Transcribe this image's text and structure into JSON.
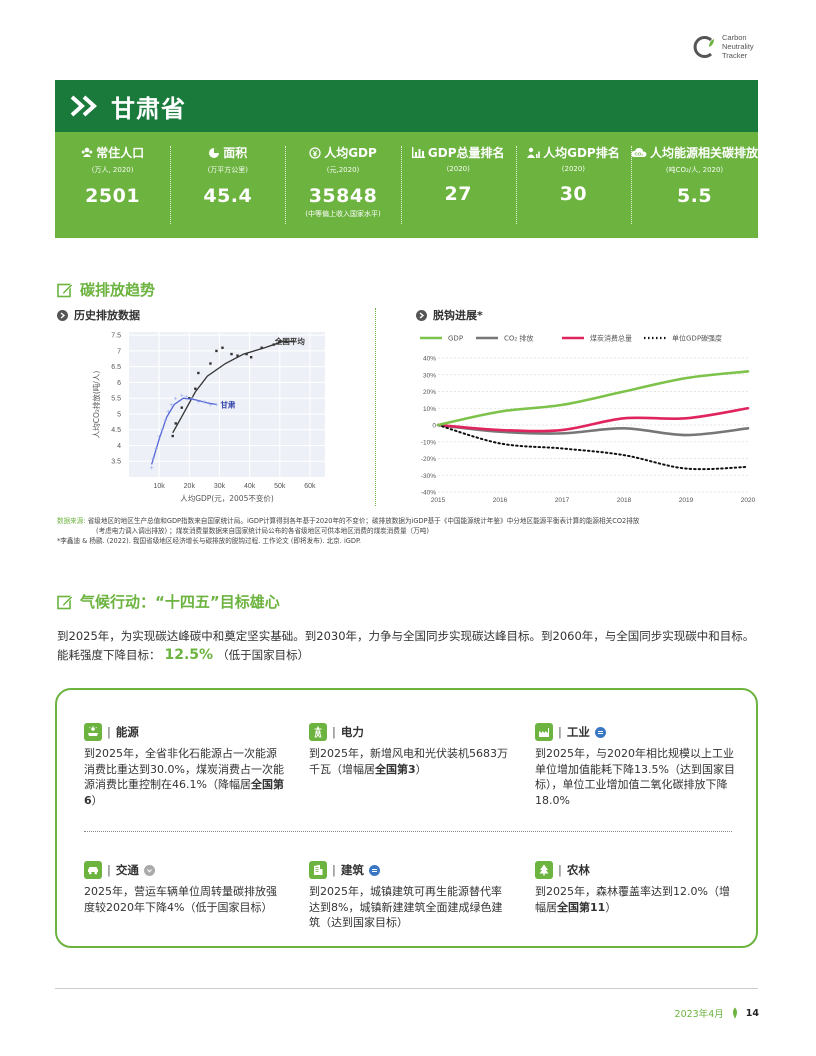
{
  "logo": {
    "lines": [
      "Carbon",
      "Neutrality",
      "Tracker"
    ]
  },
  "header": {
    "title": "甘肃省"
  },
  "stats": [
    {
      "label": "常住人口",
      "unit": "(万人, 2020)",
      "value": "2501",
      "note": "",
      "icon": "people-icon"
    },
    {
      "label": "面积",
      "unit": "(万平方公里)",
      "value": "45.4",
      "note": "",
      "icon": "pie-icon"
    },
    {
      "label": "人均GDP",
      "unit": "(元,2020)",
      "value": "35848",
      "note": "(中等偏上收入国家水平)",
      "icon": "yuan-icon"
    },
    {
      "label": "GDP总量排名",
      "unit": "(2020)",
      "value": "27",
      "note": "",
      "icon": "bar-chart-icon"
    },
    {
      "label": "人均GDP排名",
      "unit": "(2020)",
      "value": "30",
      "note": "",
      "icon": "person-rank-icon"
    },
    {
      "label": "人均能源相关碳排放",
      "unit": "(吨CO₂/人, 2020)",
      "value": "5.5",
      "note": "",
      "icon": "co2-cloud-icon"
    }
  ],
  "section1": {
    "title": "碳排放趋势"
  },
  "left_chart_title": "历史排放数据",
  "right_chart_title": "脱钩进展*",
  "chart_data": [
    {
      "type": "scatter",
      "xlabel": "人均GDP(元，2005不变价)",
      "ylabel": "人均CO₂排放(吨/人)",
      "xlim": [
        0,
        65000
      ],
      "ylim": [
        3,
        7.6
      ],
      "x_ticks": [
        "10k",
        "20k",
        "30k",
        "40k",
        "50k",
        "60k"
      ],
      "y_ticks": [
        "3.5",
        "4",
        "4.5",
        "5",
        "5.5",
        "6",
        "6.5",
        "7",
        "7.5"
      ],
      "grid": true,
      "series": [
        {
          "name": "全国平均",
          "color": "#333333",
          "points": [
            [
              14500,
              4.3
            ],
            [
              15500,
              4.7
            ],
            [
              17500,
              5.2
            ],
            [
              20000,
              5.5
            ],
            [
              22000,
              5.8
            ],
            [
              23000,
              6.3
            ],
            [
              27000,
              6.6
            ],
            [
              29000,
              7.0
            ],
            [
              31000,
              7.1
            ],
            [
              34000,
              6.9
            ],
            [
              36000,
              6.85
            ],
            [
              39000,
              6.9
            ],
            [
              40500,
              6.8
            ],
            [
              44000,
              7.1
            ],
            [
              48000,
              7.2
            ],
            [
              50000,
              7.3
            ],
            [
              52000,
              7.3
            ]
          ],
          "fit": [
            [
              14500,
              4.4
            ],
            [
              18000,
              5.0
            ],
            [
              22000,
              5.7
            ],
            [
              26000,
              6.2
            ],
            [
              32000,
              6.6
            ],
            [
              38000,
              6.9
            ],
            [
              45000,
              7.1
            ],
            [
              51000,
              7.3
            ],
            [
              55000,
              7.3
            ]
          ]
        },
        {
          "name": "甘肃",
          "color": "#5567d8",
          "points": [
            [
              7500,
              3.3
            ],
            [
              8000,
              3.6
            ],
            [
              9000,
              3.9
            ],
            [
              10000,
              4.3
            ],
            [
              11000,
              4.5
            ],
            [
              12000,
              4.8
            ],
            [
              13000,
              5.1
            ],
            [
              14000,
              5.3
            ],
            [
              15500,
              5.5
            ],
            [
              17500,
              5.6
            ],
            [
              19000,
              5.55
            ],
            [
              21000,
              5.5
            ],
            [
              23000,
              5.4
            ],
            [
              25000,
              5.4
            ],
            [
              27000,
              5.3
            ],
            [
              29000,
              5.3
            ]
          ],
          "fit": [
            [
              7500,
              3.4
            ],
            [
              10000,
              4.2
            ],
            [
              12500,
              4.9
            ],
            [
              15000,
              5.3
            ],
            [
              18000,
              5.5
            ],
            [
              22000,
              5.45
            ],
            [
              26000,
              5.35
            ],
            [
              29000,
              5.3
            ]
          ]
        }
      ]
    },
    {
      "type": "line",
      "x": [
        2015,
        2016,
        2017,
        2018,
        2019,
        2020
      ],
      "ylim": [
        -40,
        40
      ],
      "y_ticks": [
        "40%",
        "30%",
        "20%",
        "10%",
        "0",
        "-10%",
        "-20%",
        "-30%",
        "-40%"
      ],
      "legend": "top",
      "series": [
        {
          "name": "GDP",
          "color": "#7dc24a",
          "style": "solid",
          "values": [
            0,
            8,
            12,
            20,
            28,
            32
          ]
        },
        {
          "name": "CO₂ 排放",
          "color": "#777777",
          "style": "solid",
          "values": [
            0,
            -4,
            -5,
            -2,
            -6,
            -2
          ]
        },
        {
          "name": "煤炭消费总量",
          "color": "#e0245e",
          "style": "solid",
          "values": [
            0,
            -3,
            -3,
            4,
            4,
            10
          ]
        },
        {
          "name": "单位GDP碳强度",
          "color": "#111111",
          "style": "dotted",
          "values": [
            0,
            -11,
            -14,
            -18,
            -26,
            -25
          ]
        }
      ]
    }
  ],
  "notes": {
    "source_label": "数据来源:",
    "line1": "省级地区的地区生产总值和GDP指数来自国家统计局。iGDP计算得到各年基于2020年的不变价；碳排放数据为iGDP基于《中国能源统计年鉴》中分地区能源平衡表计算的能源相关CO2排放",
    "line2": "(考虑电力调入调出排放) ；煤炭消费量数据来自国家统计局公布的各省级地区可供本地区消费的煤炭消费量（万吨)",
    "line3": "*李鑫迪 & 杨鹂. (2022). 我国省级地区经济增长与碳排放的脱钩过程. 工作论文 (即将发布). 北京. iGDP."
  },
  "section2": {
    "title": "气候行动：“十四五”目标雄心"
  },
  "paragraph": {
    "line1": "到2025年，为实现碳达峰碳中和奠定坚实基础。到2030年，力争与全国同步实现碳达峰目标。到2060年，与全国同步实现碳中和目标。",
    "energy_label": "能耗强度下降目标：",
    "energy_value": "12.5%",
    "energy_note": "（低于国家目标）"
  },
  "sectors": [
    {
      "key": "energy",
      "title": "能源",
      "icon": "solar-panel-icon",
      "badge": "",
      "text_before": "到2025年，全省非化石能源占一次能源消费比重达到30.0%，煤炭消费占一次能源消费比重控制在46.1%（降幅居",
      "bold": "全国第6",
      "text_after": "）"
    },
    {
      "key": "power",
      "title": "电力",
      "icon": "transmission-tower-icon",
      "badge": "",
      "text_before": "到2025年，新增风电和光伏装机5683万千瓦（增幅居",
      "bold": "全国第3",
      "text_after": "）"
    },
    {
      "key": "industry",
      "title": "工业",
      "icon": "factory-icon",
      "badge": "equal",
      "text_before": "到2025年，与2020年相比规模以上工业单位增加值能耗下降13.5%（达到国家目标），单位工业增加值二氧化碳排放下降18.0%",
      "bold": "",
      "text_after": ""
    },
    {
      "key": "transport",
      "title": "交通",
      "icon": "car-icon",
      "badge": "down",
      "text_before": "2025年，营运车辆单位周转量碳排放强度较2020年下降4%（低于国家目标）",
      "bold": "",
      "text_after": ""
    },
    {
      "key": "building",
      "title": "建筑",
      "icon": "building-icon",
      "badge": "equal",
      "text_before": "到2025年，城镇建筑可再生能源替代率达到8%，城镇新建建筑全面建成绿色建筑（达到国家目标）",
      "bold": "",
      "text_after": ""
    },
    {
      "key": "forestry",
      "title": "农林",
      "icon": "tree-icon",
      "badge": "",
      "text_before": "到2025年，森林覆盖率达到12.0%（增幅居",
      "bold": "全国第11",
      "text_after": "）"
    }
  ],
  "footer": {
    "date": "2023年4月",
    "page": "14"
  },
  "colors": {
    "brand_dark": "#1a7a3c",
    "brand_green": "#6cb33f",
    "badge_blue": "#3a78c4",
    "badge_gray": "#aaaaaa"
  }
}
